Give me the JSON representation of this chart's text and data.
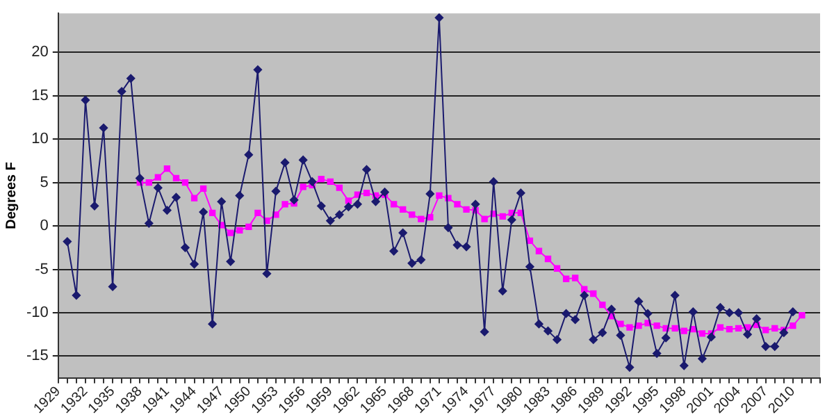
{
  "chart_data": {
    "type": "line",
    "ylabel": "Degrees F",
    "categories": [
      "1929",
      null,
      null,
      "1932",
      null,
      null,
      "1935",
      null,
      null,
      "1938",
      null,
      null,
      "1941",
      null,
      null,
      "1944",
      null,
      null,
      "1947",
      null,
      null,
      "1950",
      null,
      null,
      "1953",
      null,
      null,
      "1956",
      null,
      null,
      "1959",
      null,
      null,
      "1962",
      null,
      null,
      "1965",
      null,
      null,
      "1968",
      null,
      null,
      "1971",
      null,
      null,
      "1974",
      null,
      null,
      "1977",
      null,
      null,
      "1980",
      null,
      null,
      "1983",
      null,
      null,
      "1986",
      null,
      null,
      "1989",
      null,
      null,
      "1992",
      null,
      null,
      "1995",
      null,
      null,
      "1998",
      null,
      null,
      "2001",
      null,
      null,
      "2004",
      null,
      null,
      "2007",
      null,
      null,
      "2010",
      null,
      null,
      null
    ],
    "series": [
      {
        "color": "#1a1a6e",
        "marker": "diamond",
        "values": [
          null,
          -1.8,
          -8.0,
          14.5,
          2.3,
          11.3,
          -7.0,
          15.5,
          17.0,
          5.5,
          0.3,
          4.4,
          1.8,
          3.3,
          -2.5,
          -4.4,
          1.6,
          -11.3,
          2.8,
          -4.1,
          3.5,
          8.2,
          18.0,
          -5.5,
          4.0,
          7.3,
          3.0,
          7.6,
          5.1,
          2.3,
          0.6,
          1.3,
          2.2,
          2.5,
          6.5,
          2.8,
          3.9,
          -2.9,
          -0.8,
          -4.3,
          -3.9,
          3.7,
          24,
          -0.2,
          -2.2,
          -2.4,
          2.5,
          -12.2,
          5.1,
          -7.5,
          0.7,
          3.8,
          -4.7,
          -11.3,
          -12.1,
          -13.1,
          -10.1,
          -10.8,
          -8.0,
          -13.1,
          -12.3,
          -9.6,
          -12.6,
          -16.3,
          -8.7,
          -10.1,
          -14.7,
          -12.9,
          -8.0,
          -16.1,
          -9.9,
          -15.3,
          -12.8,
          -9.4,
          -10.0,
          -10.0,
          -12.5,
          -10.7,
          -13.9,
          -13.9,
          -12.3,
          -9.9,
          null,
          null,
          null
        ]
      },
      {
        "color": "#ff00ff",
        "marker": "square",
        "values": [
          null,
          null,
          null,
          null,
          null,
          null,
          null,
          null,
          null,
          5.0,
          5.0,
          5.6,
          6.6,
          5.5,
          5.0,
          3.2,
          4.3,
          1.5,
          0.1,
          -0.8,
          -0.5,
          -0.1,
          1.5,
          0.6,
          1.3,
          2.5,
          2.6,
          4.5,
          4.7,
          5.4,
          5.1,
          4.4,
          2.9,
          3.6,
          3.8,
          3.5,
          3.6,
          2.5,
          1.9,
          1.3,
          0.8,
          1.0,
          3.5,
          3.2,
          2.5,
          1.9,
          1.8,
          0.8,
          1.4,
          1.1,
          1.5,
          1.5,
          -1.7,
          -2.9,
          -3.8,
          -4.9,
          -6.1,
          -6.0,
          -7.3,
          -7.8,
          -9.1,
          -10.4,
          -11.3,
          -11.7,
          -11.5,
          -11.2,
          -11.5,
          -11.8,
          -11.8,
          -12.1,
          -11.9,
          -12.4,
          -12.4,
          -11.7,
          -11.9,
          -11.8,
          -11.7,
          -11.4,
          -12.0,
          -11.8,
          -12.0,
          -11.5,
          -10.3,
          null,
          null
        ]
      }
    ],
    "ylim": [
      -17.5,
      24.5
    ],
    "yticks": [
      -15,
      -10,
      -5,
      0,
      5,
      10,
      15,
      20
    ],
    "grid": "y",
    "line_style": "solid"
  }
}
